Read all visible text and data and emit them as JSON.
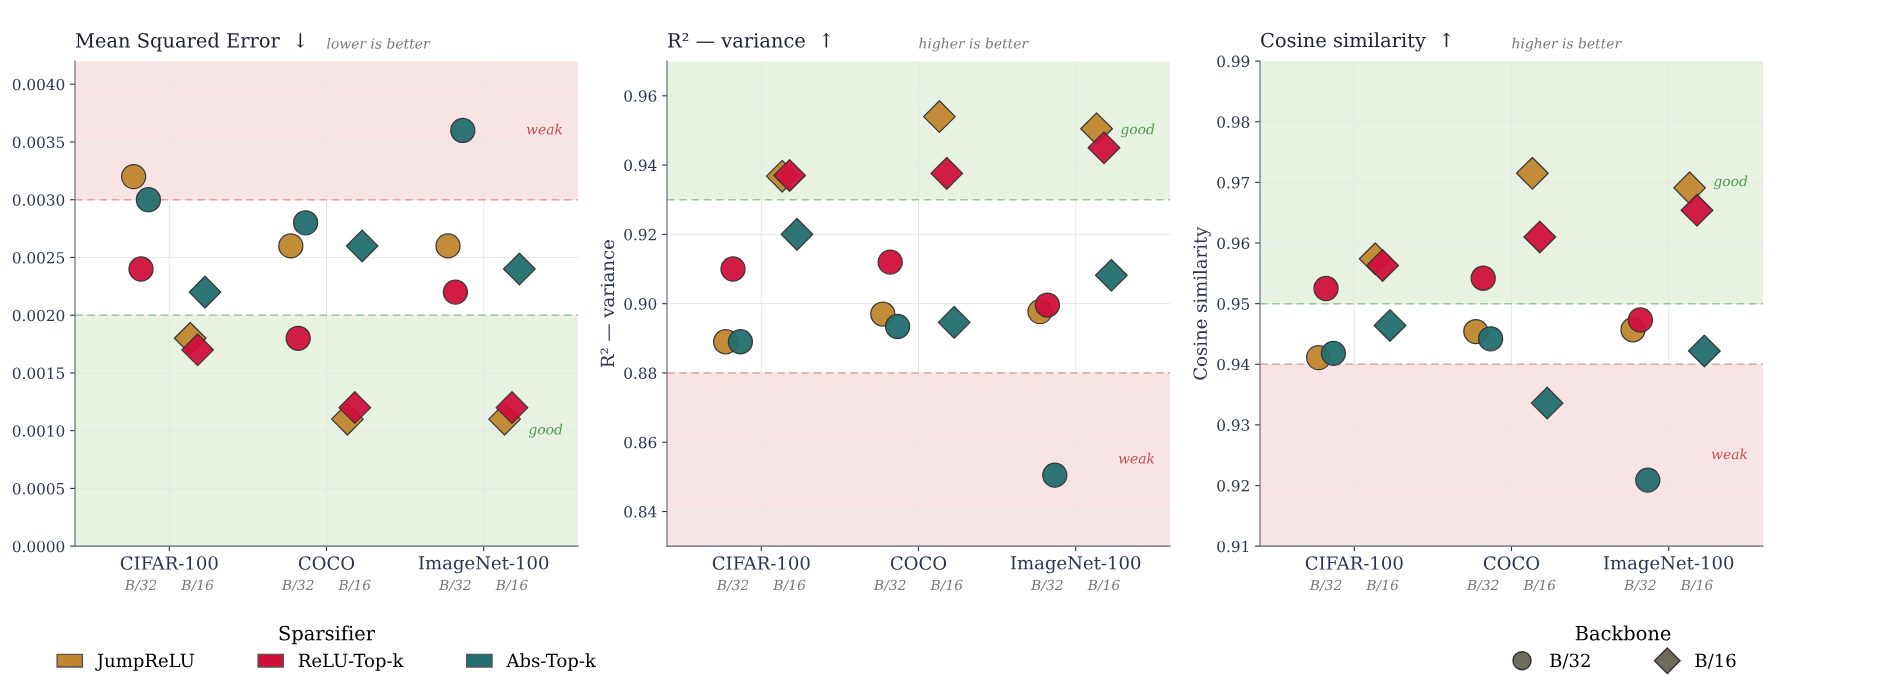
{
  "chart_data": [
    {
      "type": "scatter",
      "title": "Mean Squared Error  ↓",
      "subtitle": "lower is better",
      "categories": [
        "B/32",
        "B/16",
        "B/32",
        "B/16",
        "B/32",
        "B/16"
      ],
      "annotations": [
        "CIFAR-100",
        "COCO",
        "ImageNet-100"
      ],
      "ylim": [
        0,
        0.0042
      ],
      "yticks": [
        {
          "value": 0,
          "label": "0.0000"
        },
        {
          "value": 0.0005,
          "label": "0.0005"
        },
        {
          "value": 0.001,
          "label": "0.0010"
        },
        {
          "value": 0.0015,
          "label": "0.0015"
        },
        {
          "value": 0.002,
          "label": "0.0020"
        },
        {
          "value": 0.0025,
          "label": "0.0025"
        },
        {
          "value": 0.003,
          "label": "0.0030"
        },
        {
          "value": 0.0035,
          "label": "0.0035"
        },
        {
          "value": 0.004,
          "label": "0.0040"
        }
      ],
      "grid": true,
      "legend": "bottom",
      "legend_title": "Sparsifier",
      "bands": [
        {
          "axis": "y",
          "from": 0.003,
          "to": 0.0042,
          "label": "weak",
          "color": "#f8e4e4"
        },
        {
          "axis": "y",
          "from": 0,
          "to": 0.002,
          "label": "good",
          "color": "#e8f2e2"
        }
      ],
      "ref_lines": [
        {
          "axis": "y",
          "value": 0.003,
          "color": "#e8a0a0",
          "line_style": "dashed"
        },
        {
          "axis": "y",
          "value": 0.002,
          "color": "#9cc89a",
          "line_style": "dashed"
        }
      ],
      "series": [
        {
          "name": "JumpReLU",
          "color": "#c0862e",
          "marker": "circle",
          "values": [
            0.0032,
            null,
            0.0026,
            null,
            0.0026,
            null
          ]
        },
        {
          "name": "ReLU-Top-k",
          "color": "#d0103a",
          "marker": "circle",
          "values": [
            0.0024,
            null,
            0.0018,
            null,
            0.0022,
            null
          ]
        },
        {
          "name": "Abs-Top-k",
          "color": "#236e6e",
          "marker": "circle",
          "values": [
            0.003,
            null,
            0.0028,
            null,
            0.0036,
            null
          ]
        },
        {
          "color": "#c0862e",
          "marker": "diamond",
          "values": [
            null,
            0.0018,
            null,
            0.0011,
            null,
            0.0011
          ]
        },
        {
          "color": "#d0103a",
          "marker": "diamond",
          "values": [
            null,
            0.0017,
            null,
            0.0012,
            null,
            0.0012
          ]
        },
        {
          "color": "#236e6e",
          "marker": "diamond",
          "values": [
            null,
            0.0022,
            null,
            0.0026,
            null,
            0.0024
          ]
        }
      ]
    },
    {
      "type": "scatter",
      "title": "R² — variance  ↑",
      "subtitle": "higher is better",
      "ylabel": "R² — variance",
      "categories": [
        "B/32",
        "B/16",
        "B/32",
        "B/16",
        "B/32",
        "B/16"
      ],
      "annotations": [
        "CIFAR-100",
        "COCO",
        "ImageNet-100"
      ],
      "ylim": [
        0.83,
        0.97
      ],
      "yticks": [
        {
          "value": 0.84,
          "label": "0.84"
        },
        {
          "value": 0.86,
          "label": "0.86"
        },
        {
          "value": 0.88,
          "label": "0.88"
        },
        {
          "value": 0.9,
          "label": "0.90"
        },
        {
          "value": 0.92,
          "label": "0.92"
        },
        {
          "value": 0.94,
          "label": "0.94"
        },
        {
          "value": 0.96,
          "label": "0.96"
        }
      ],
      "grid": true,
      "bands": [
        {
          "axis": "y",
          "from": 0.93,
          "to": 0.97,
          "label": "good",
          "color": "#e8f2e2"
        },
        {
          "axis": "y",
          "from": 0.83,
          "to": 0.88,
          "label": "weak",
          "color": "#f8e4e4"
        }
      ],
      "ref_lines": [
        {
          "axis": "y",
          "value": 0.93,
          "color": "#9cc89a",
          "line_style": "dashed"
        },
        {
          "axis": "y",
          "value": 0.88,
          "color": "#e8a0a0",
          "line_style": "dashed"
        }
      ],
      "series": [
        {
          "color": "#c0862e",
          "marker": "circle",
          "values": [
            0.889,
            null,
            0.897,
            null,
            0.8977,
            null
          ]
        },
        {
          "color": "#d0103a",
          "marker": "circle",
          "values": [
            0.91,
            null,
            0.912,
            null,
            0.8996,
            null
          ]
        },
        {
          "color": "#236e6e",
          "marker": "circle",
          "values": [
            0.889,
            null,
            0.8934,
            null,
            0.8505,
            null
          ]
        },
        {
          "color": "#c0862e",
          "marker": "diamond",
          "values": [
            null,
            0.9368,
            null,
            0.954,
            null,
            0.9505
          ]
        },
        {
          "color": "#d0103a",
          "marker": "diamond",
          "values": [
            null,
            0.937,
            null,
            0.9376,
            null,
            0.945
          ]
        },
        {
          "color": "#236e6e",
          "marker": "diamond",
          "values": [
            null,
            0.92,
            null,
            0.8946,
            null,
            0.9082
          ]
        }
      ]
    },
    {
      "type": "scatter",
      "title": "Cosine similarity  ↑",
      "subtitle": "higher is better",
      "ylabel": "Cosine similarity",
      "categories": [
        "B/32",
        "B/16",
        "B/32",
        "B/16",
        "B/32",
        "B/16"
      ],
      "annotations": [
        "CIFAR-100",
        "COCO",
        "ImageNet-100"
      ],
      "ylim": [
        0.91,
        0.99
      ],
      "yticks": [
        0.91,
        0.92,
        0.93,
        0.94,
        0.95,
        0.96,
        0.97,
        0.98,
        0.99
      ],
      "grid": true,
      "legend": "bottom right",
      "legend_title": "Backbone",
      "bands": [
        {
          "axis": "y",
          "from": 0.95,
          "to": 0.99,
          "label": "good",
          "color": "#e8f2e2"
        },
        {
          "axis": "y",
          "from": 0.91,
          "to": 0.94,
          "label": "weak",
          "color": "#f8e4e4"
        }
      ],
      "ref_lines": [
        {
          "axis": "y",
          "value": 0.95,
          "color": "#9cc89a",
          "line_style": "dashed"
        },
        {
          "axis": "y",
          "value": 0.94,
          "color": "#e8a0a0",
          "line_style": "dashed"
        }
      ],
      "series": [
        {
          "color": "#c0862e",
          "marker": "circle",
          "values": [
            0.9411,
            null,
            0.9454,
            null,
            0.9457,
            null
          ]
        },
        {
          "color": "#d0103a",
          "marker": "circle",
          "values": [
            0.9525,
            null,
            0.9542,
            null,
            0.9473,
            null
          ]
        },
        {
          "color": "#236e6e",
          "marker": "circle",
          "values": [
            0.9418,
            null,
            0.9442,
            null,
            0.9209,
            null
          ]
        },
        {
          "color": "#c0862e",
          "marker": "diamond",
          "values": [
            null,
            0.9574,
            null,
            0.9715,
            null,
            0.9691
          ]
        },
        {
          "color": "#d0103a",
          "marker": "diamond",
          "values": [
            null,
            0.9563,
            null,
            0.961,
            null,
            0.9654
          ]
        },
        {
          "color": "#236e6e",
          "marker": "diamond",
          "values": [
            null,
            0.9464,
            null,
            0.9336,
            null,
            0.9422
          ]
        }
      ]
    }
  ]
}
